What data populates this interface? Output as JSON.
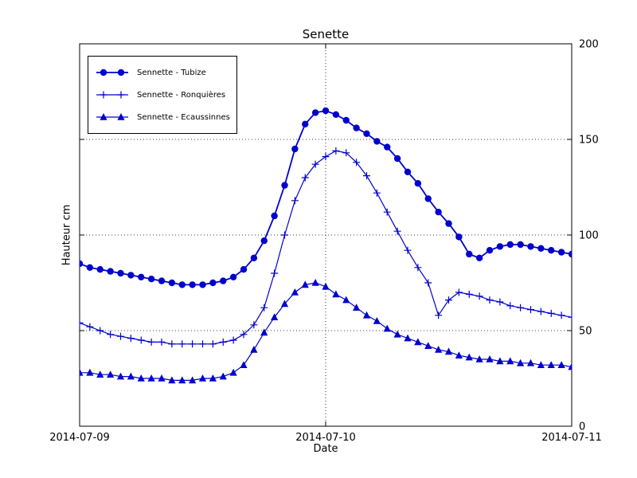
{
  "chart_data": {
    "type": "line",
    "title": "Senette",
    "xlabel": "Date",
    "ylabel": "Hauteur cm",
    "x_unit": "hours since 2014-07-09 00:00",
    "xlim": [
      0,
      48
    ],
    "ylim": [
      0,
      200
    ],
    "x_ticks": [
      {
        "value": 0,
        "label": "2014-07-09"
      },
      {
        "value": 24,
        "label": "2014-07-10"
      },
      {
        "value": 48,
        "label": "2014-07-11"
      }
    ],
    "y_ticks": [
      {
        "value": 0,
        "label": "0"
      },
      {
        "value": 50,
        "label": "50"
      },
      {
        "value": 100,
        "label": "100"
      },
      {
        "value": 150,
        "label": "150"
      },
      {
        "value": 200,
        "label": "200"
      }
    ],
    "grid": {
      "h_lines": [
        50,
        100,
        150
      ],
      "v_lines": [
        24
      ],
      "style": "dotted"
    },
    "legend_position": "upper-left",
    "line_color": "#0000cd",
    "x": [
      0,
      1,
      2,
      3,
      4,
      5,
      6,
      7,
      8,
      9,
      10,
      11,
      12,
      13,
      14,
      15,
      16,
      17,
      18,
      19,
      20,
      21,
      22,
      23,
      24,
      25,
      26,
      27,
      28,
      29,
      30,
      31,
      32,
      33,
      34,
      35,
      36,
      37,
      38,
      39,
      40,
      41,
      42,
      43,
      44,
      45,
      46,
      47,
      48
    ],
    "series": [
      {
        "name": "Sennette - Tubize",
        "marker": "circle",
        "values": [
          85,
          83,
          82,
          81,
          80,
          79,
          78,
          77,
          76,
          75,
          74,
          74,
          74,
          75,
          76,
          78,
          82,
          88,
          97,
          110,
          126,
          145,
          158,
          164,
          165,
          163,
          160,
          156,
          153,
          149,
          146,
          140,
          133,
          127,
          119,
          112,
          106,
          99,
          90,
          88,
          92,
          94,
          95,
          95,
          94,
          93,
          92,
          91,
          90
        ]
      },
      {
        "name": "Sennette - Ronquières",
        "marker": "plus",
        "values": [
          54,
          52,
          50,
          48,
          47,
          46,
          45,
          44,
          44,
          43,
          43,
          43,
          43,
          43,
          44,
          45,
          48,
          53,
          62,
          80,
          100,
          118,
          130,
          137,
          141,
          144,
          143,
          138,
          131,
          122,
          112,
          102,
          92,
          83,
          75,
          58,
          66,
          70,
          69,
          68,
          66,
          65,
          63,
          62,
          61,
          60,
          59,
          58,
          57
        ]
      },
      {
        "name": "Sennette - Ecaussinnes",
        "marker": "triangle",
        "values": [
          28,
          28,
          27,
          27,
          26,
          26,
          25,
          25,
          25,
          24,
          24,
          24,
          25,
          25,
          26,
          28,
          32,
          40,
          49,
          57,
          64,
          70,
          74,
          75,
          73,
          69,
          66,
          62,
          58,
          55,
          51,
          48,
          46,
          44,
          42,
          40,
          39,
          37,
          36,
          35,
          35,
          34,
          34,
          33,
          33,
          32,
          32,
          32,
          31
        ]
      }
    ]
  }
}
